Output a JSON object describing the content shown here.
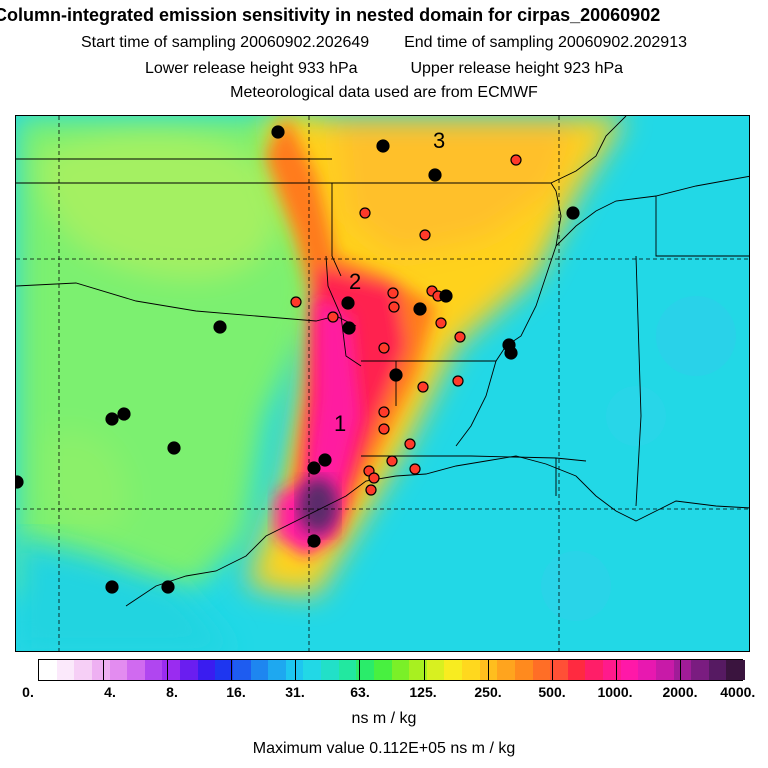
{
  "title": "Column-integrated emission sensitivity in nested domain for cirpas_20060902",
  "sampling": {
    "start": "Start time of sampling 20060902.202649",
    "end": "End time of sampling 20060902.202913"
  },
  "release": {
    "lower": "Lower release height  933 hPa",
    "upper": "Upper release height  923 hPa"
  },
  "met_source": "Meteorological data used are from ECMWF",
  "colorbar": {
    "ticks": [
      "0.",
      "4.",
      "8.",
      "16.",
      "31.",
      "63.",
      "125.",
      "250.",
      "500.",
      "1000.",
      "2000.",
      "4000."
    ],
    "unit": "ns m / kg"
  },
  "max_value": "Maximum value  0.112E+05 ns m / kg",
  "map": {
    "labels": {
      "l1": "1",
      "l2": "2",
      "l3": "3"
    },
    "colors": {
      "ocean": "#22d8e6",
      "land": "#7cf070",
      "plume_yellow": "#ffc81e",
      "plume_red": "#ff2050",
      "plume_magenta": "#ff1aa0",
      "plume_dark": "#5a2a6a"
    }
  }
}
